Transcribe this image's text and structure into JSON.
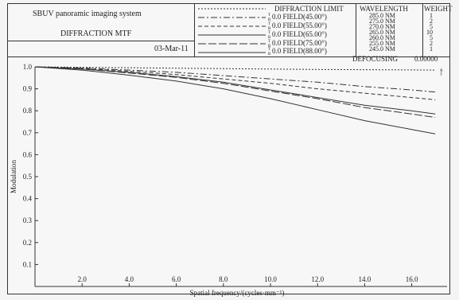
{
  "header": {
    "system_title": "SBUV panoramic imaging system",
    "report_title": "DIFFRACTION MTF",
    "date": "03-Mar-11",
    "defocusing_label": "DEFOCUSING",
    "defocusing_value": "0.00000"
  },
  "legend": {
    "diffraction_limit": "DIFFRACTION LIMIT",
    "fields": [
      {
        "label": "0.0 FIELD(45.00°)",
        "markers": [
          "T",
          "R"
        ]
      },
      {
        "label": "0.0 FIELD(55.00°)",
        "markers": [
          "T",
          "R"
        ]
      },
      {
        "label": "0.0 FIELD(65.00°)",
        "markers": [
          "T",
          "R"
        ]
      },
      {
        "label": "0.0 FIELD(75.00°)",
        "markers": [
          "T",
          "R"
        ]
      },
      {
        "label": "0.0 FIELD(88.00°)",
        "markers": [
          "T",
          "R"
        ]
      }
    ]
  },
  "wavelength_table": {
    "header_wavelength": "WAVELENGTH",
    "header_weight": "WEIGHT",
    "rows": [
      {
        "wavelength": "285.0 NM",
        "weight": "1"
      },
      {
        "wavelength": "275.0 NM",
        "weight": "2"
      },
      {
        "wavelength": "270.0 NM",
        "weight": "5"
      },
      {
        "wavelength": "265.0 NM",
        "weight": "10"
      },
      {
        "wavelength": "260.0 NM",
        "weight": "5"
      },
      {
        "wavelength": "255.0 NM",
        "weight": "2"
      },
      {
        "wavelength": "245.0 NM",
        "weight": "1"
      }
    ]
  },
  "chart_data": {
    "type": "line",
    "xlabel": "Spatial frequency/(cycles·mm⁻¹)",
    "ylabel": "Modulation",
    "xlim": [
      0,
      17.5
    ],
    "ylim": [
      0,
      1.0
    ],
    "xticks": [
      2.0,
      4.0,
      6.0,
      8.0,
      10.0,
      12.0,
      14.0,
      16.0
    ],
    "yticks": [
      0.1,
      0.2,
      0.3,
      0.4,
      0.5,
      0.6,
      0.7,
      0.8,
      0.9,
      1.0
    ],
    "x": [
      0,
      2,
      4,
      6,
      8,
      10,
      12,
      14,
      16,
      17
    ],
    "right_end_markers": [
      "R",
      "T"
    ],
    "series": [
      {
        "name": "DIFFRACTION LIMIT",
        "style": "dotted",
        "values": [
          1.0,
          0.998,
          0.996,
          0.994,
          0.992,
          0.99,
          0.988,
          0.987,
          0.986,
          0.985
        ]
      },
      {
        "name": "0.0 FIELD(45.00°)",
        "style": "dashdot",
        "values": [
          1.0,
          0.995,
          0.985,
          0.975,
          0.96,
          0.945,
          0.93,
          0.91,
          0.895,
          0.885
        ]
      },
      {
        "name": "0.0 FIELD(55.00°)",
        "style": "dashed",
        "values": [
          1.0,
          0.993,
          0.98,
          0.965,
          0.945,
          0.925,
          0.9,
          0.88,
          0.86,
          0.85
        ]
      },
      {
        "name": "0.0 FIELD(65.00°)",
        "style": "solid",
        "values": [
          1.0,
          0.99,
          0.975,
          0.955,
          0.93,
          0.895,
          0.86,
          0.825,
          0.8,
          0.785
        ]
      },
      {
        "name": "0.0 FIELD(75.00°)",
        "style": "longdash",
        "values": [
          1.0,
          0.99,
          0.972,
          0.952,
          0.925,
          0.89,
          0.855,
          0.815,
          0.785,
          0.77
        ]
      },
      {
        "name": "0.0 FIELD(88.00°)",
        "style": "solid",
        "values": [
          1.0,
          0.985,
          0.962,
          0.935,
          0.9,
          0.855,
          0.805,
          0.755,
          0.715,
          0.695
        ]
      }
    ],
    "grid": false,
    "legend": "top header"
  }
}
